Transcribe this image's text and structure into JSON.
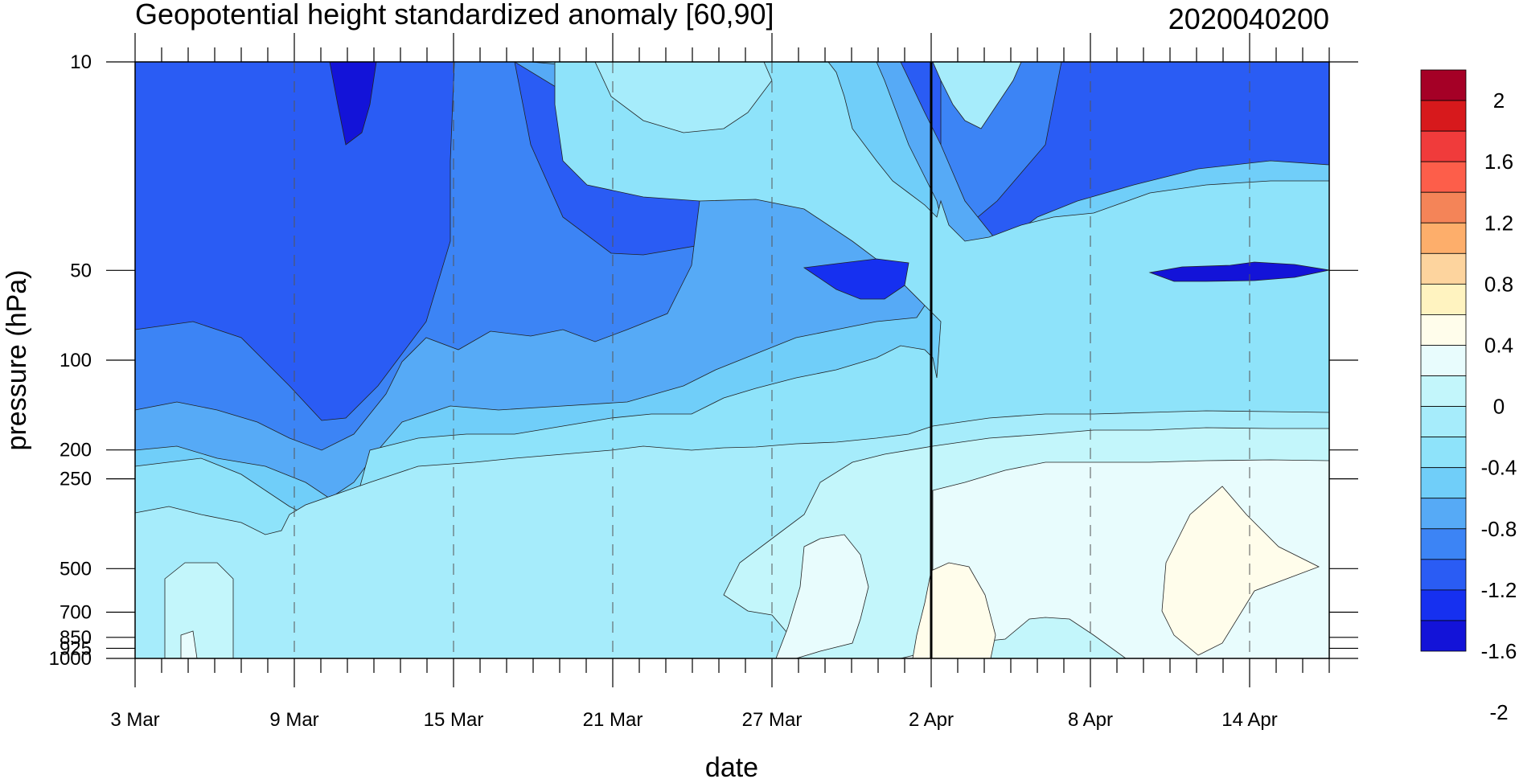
{
  "chart_data": {
    "type": "heatmap",
    "title": "Geopotential height standardized anomaly [60,90]",
    "date_stamp": "2020040200",
    "xlabel": "date",
    "ylabel": "pressure (hPa)",
    "x_ticks": [
      "3 Mar",
      "9 Mar",
      "15 Mar",
      "21 Mar",
      "27 Mar",
      "2 Apr",
      "8 Apr",
      "14 Apr"
    ],
    "x_range": [
      "3 Mar",
      "17 Apr"
    ],
    "y_ticks": [
      10,
      50,
      100,
      200,
      250,
      500,
      700,
      850,
      925,
      1000
    ],
    "y_scale": "log",
    "y_range": [
      1000,
      10
    ],
    "current_date_marker": "2 Apr",
    "colorbar": {
      "labels": [
        "2",
        "1.6",
        "1.2",
        "0.8",
        "0.4",
        "0",
        "-0.4",
        "-0.8",
        "-1.2",
        "-1.6",
        "-2"
      ],
      "colors": [
        "#a50026",
        "#d7191c",
        "#f03b3b",
        "#fd5e4a",
        "#f48458",
        "#fdae6b",
        "#fdd49e",
        "#fff3c0",
        "#fffdeb",
        "#e8fcfd",
        "#c3f6fb",
        "#a6ecfb",
        "#8ee3fa",
        "#70cef9",
        "#56aaf6",
        "#3c84f5",
        "#2a5cf4",
        "#1630f0",
        "#1313d8"
      ]
    },
    "contour_colors": {
      "c_lt_m2": "#1313d8",
      "c_m2": "#1630f0",
      "c_m18": "#2a5cf4",
      "c_m16": "#3c84f5",
      "c_m14": "#56aaf6",
      "c_m12": "#70cef9",
      "c_m1": "#8ee3fa",
      "c_m08": "#a6ecfb",
      "c_m06": "#c3f6fb",
      "c_m04": "#e8fcfd",
      "c_m02": "#fffdeb"
    }
  }
}
